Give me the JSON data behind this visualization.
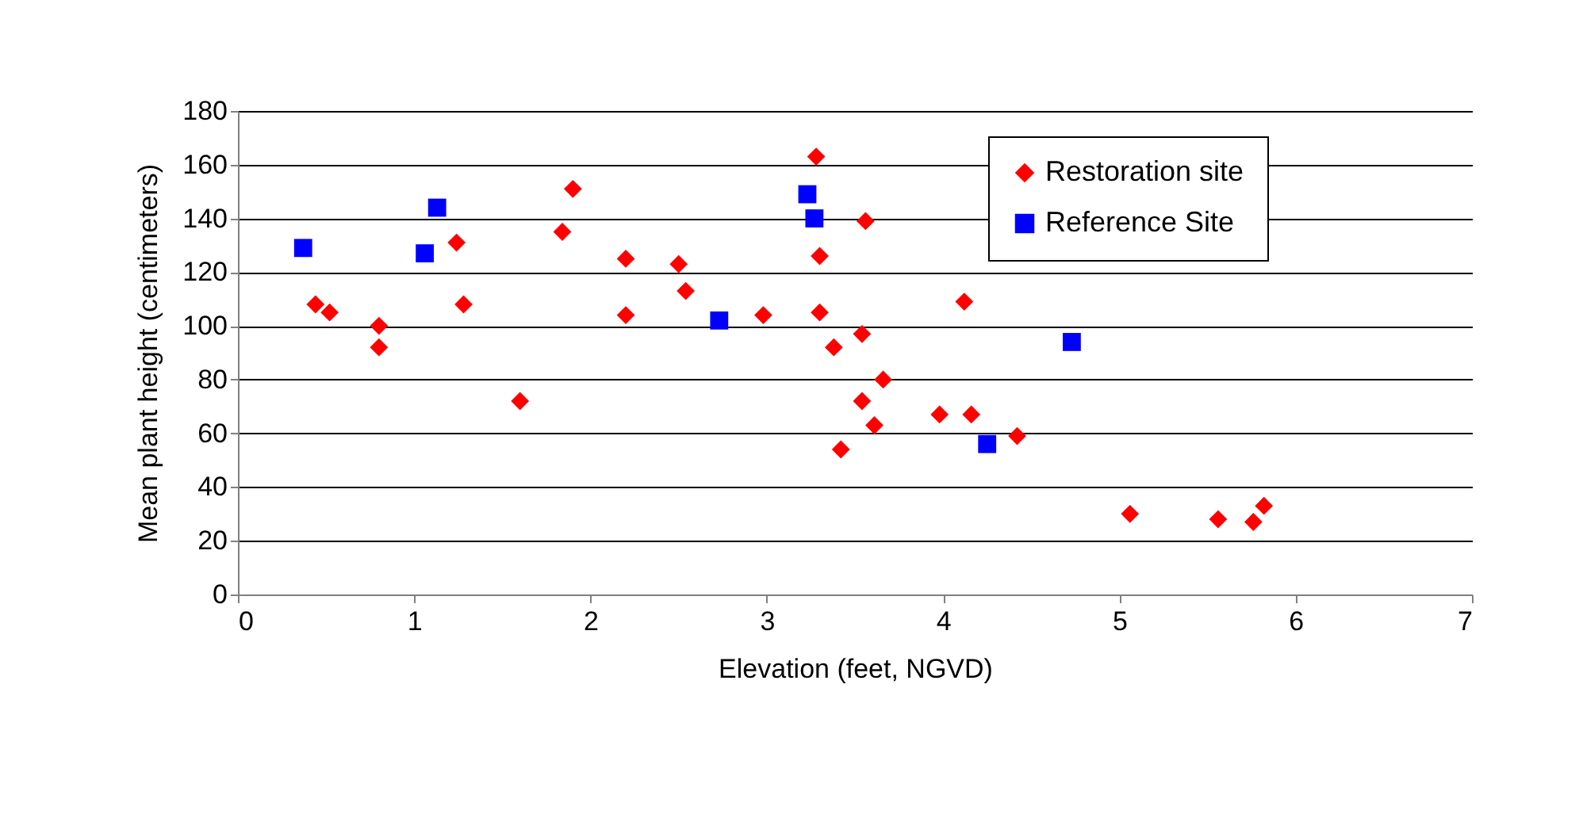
{
  "chart_data": {
    "type": "scatter",
    "xlabel": "Elevation (feet, NGVD)",
    "ylabel": "Mean plant height (centimeters)",
    "xlim": [
      0,
      7
    ],
    "xticks": [
      0,
      1,
      2,
      3,
      4,
      5,
      6,
      7
    ],
    "ylim": [
      0,
      180
    ],
    "yticks": [
      0,
      20,
      40,
      60,
      80,
      100,
      120,
      140,
      160,
      180
    ],
    "grid": "y",
    "legend": "top right",
    "series": [
      {
        "name": "Restoration site",
        "color": "#ff0000",
        "marker": "diamond",
        "x": [
          0.44,
          0.52,
          0.8,
          0.8,
          1.24,
          1.28,
          1.6,
          1.84,
          1.9,
          2.2,
          2.2,
          2.5,
          2.54,
          2.98,
          3.28,
          3.3,
          3.3,
          3.56,
          3.38,
          3.54,
          3.54,
          3.66,
          3.61,
          3.42,
          3.98,
          4.12,
          4.16,
          4.42,
          5.06,
          5.56,
          5.76,
          5.82
        ],
        "values": [
          108,
          105,
          100,
          92,
          131,
          108,
          72,
          135,
          151,
          125,
          104,
          123,
          113,
          104,
          163,
          126,
          105,
          139,
          92,
          97,
          72,
          80,
          63,
          54,
          67,
          109,
          67,
          59,
          30,
          28,
          27,
          33
        ]
      },
      {
        "name": "Reference Site",
        "color": "#0000ff",
        "marker": "square",
        "x": [
          0.37,
          1.06,
          1.13,
          2.73,
          3.23,
          3.27,
          4.25,
          4.73
        ],
        "values": [
          129,
          127,
          144,
          102,
          149,
          140,
          56,
          94
        ]
      }
    ]
  }
}
